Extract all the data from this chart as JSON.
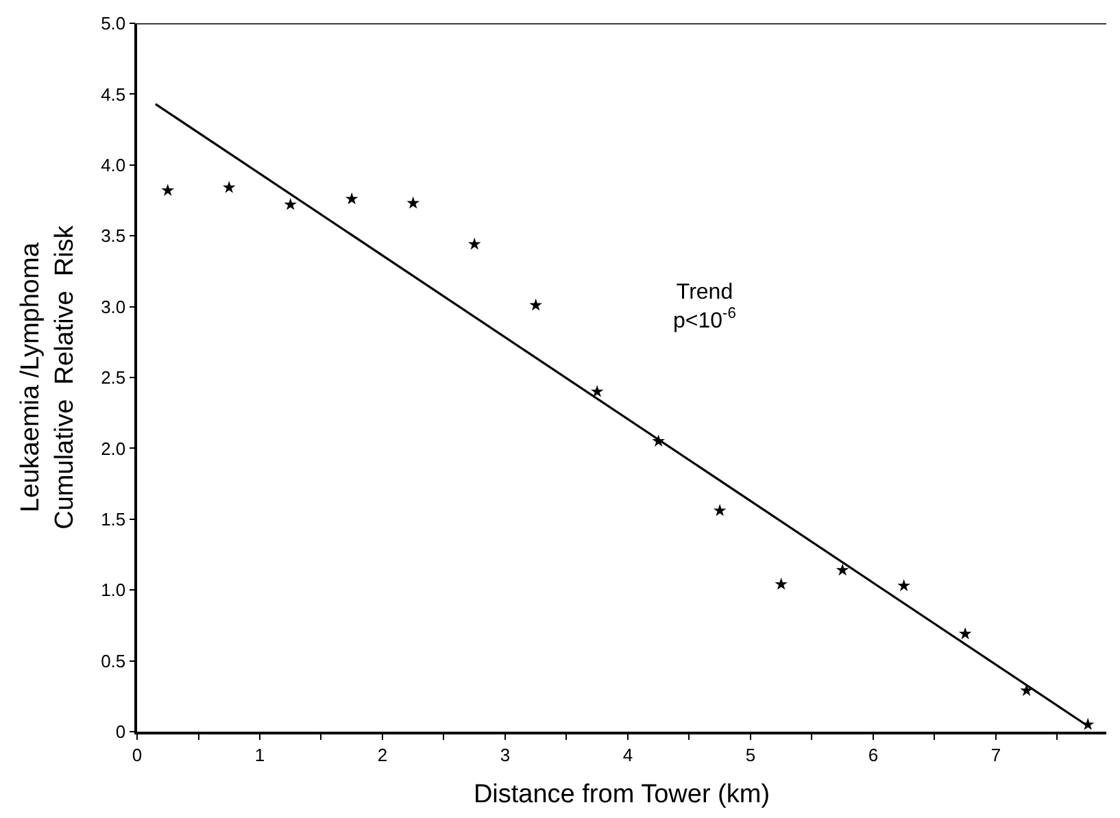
{
  "chart_data": {
    "type": "scatter",
    "xlabel": "Distance from Tower (km)",
    "ylabel": "Leukaemia /Lymphoma\nCumulative  Relative  Risk",
    "x": [
      0.25,
      0.75,
      1.25,
      1.75,
      2.25,
      2.75,
      3.25,
      3.75,
      4.25,
      4.75,
      5.25,
      5.75,
      6.25,
      6.75,
      7.25,
      7.75
    ],
    "series": [
      {
        "color": "#000000",
        "values": [
          3.82,
          3.84,
          3.72,
          3.76,
          3.73,
          3.44,
          3.01,
          2.4,
          2.05,
          1.56,
          1.04,
          1.14,
          1.03,
          0.69,
          0.29,
          0.05
        ]
      },
      {
        "type": "line",
        "color": "#000000",
        "x": [
          0.15,
          7.75
        ],
        "values": [
          4.43,
          0.04
        ],
        "marker": "none"
      }
    ],
    "marker": "star",
    "annotations": [
      "Trend\np<10$^{-6}$"
    ],
    "xlim": [
      0,
      7.9
    ],
    "ylim": [
      0,
      5.0
    ],
    "xticks": [
      0,
      {
        "value": 0.5,
        "label": null
      },
      1,
      {
        "value": 1.5,
        "label": null
      },
      2,
      {
        "value": 2.5,
        "label": null
      },
      3,
      {
        "value": 3.5,
        "label": null
      },
      4,
      {
        "value": 4.5,
        "label": null
      },
      5,
      {
        "value": 5.5,
        "label": null
      },
      6,
      {
        "value": 6.5,
        "label": null
      },
      7,
      {
        "value": 7.5,
        "label": null
      }
    ],
    "yticks": [
      0,
      0.5,
      {
        "value": 1,
        "label": "1.0"
      },
      1.5,
      {
        "value": 2,
        "label": "2.0"
      },
      2.5,
      {
        "value": 3,
        "label": "3.0"
      },
      3.5,
      {
        "value": 4,
        "label": "4.0"
      },
      4.5,
      {
        "value": 5,
        "label": "5.0"
      }
    ],
    "tick_labels": "xy"
  }
}
